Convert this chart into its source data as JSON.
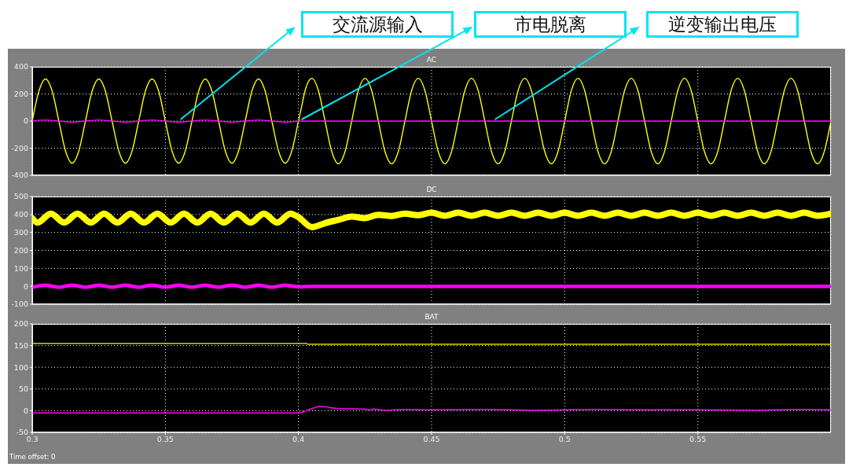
{
  "chart_data": [
    {
      "type": "line",
      "title": "AC",
      "xlim": [
        0.3,
        0.6
      ],
      "xticks": [
        0.3,
        0.35,
        0.4,
        0.45,
        0.5,
        0.55
      ],
      "ylim": [
        -400,
        400
      ],
      "yticks": [
        -400,
        -200,
        0,
        200,
        400
      ],
      "grid": true,
      "tick_labels": "y",
      "series": [
        {
          "color": "#ffff00",
          "x": [
            0.3,
            0.3025,
            0.305,
            0.3075,
            0.31,
            0.3125,
            0.315,
            0.3175,
            0.32,
            0.3225,
            0.325,
            0.3275,
            0.33,
            0.3325,
            0.335,
            0.3375,
            0.34,
            0.3425,
            0.345,
            0.3475,
            0.35,
            0.3525,
            0.355,
            0.3575,
            0.36,
            0.3625,
            0.365,
            0.3675,
            0.37,
            0.3725,
            0.375,
            0.3775,
            0.38,
            0.3825,
            0.385,
            0.3875,
            0.39,
            0.3925,
            0.395,
            0.3975,
            0.4,
            0.401,
            0.4025,
            0.405,
            0.4075,
            0.41,
            0.4125,
            0.415,
            0.4175,
            0.42,
            0.4225,
            0.425,
            0.4275,
            0.43,
            0.4325,
            0.435,
            0.4375,
            0.44,
            0.4425,
            0.445,
            0.4475,
            0.45,
            0.4525,
            0.455,
            0.4575,
            0.46,
            0.4625,
            0.465,
            0.4675,
            0.47,
            0.4725,
            0.475,
            0.4775,
            0.48,
            0.4825,
            0.485,
            0.4875,
            0.49,
            0.4925,
            0.495,
            0.4975,
            0.5,
            0.5025,
            0.505,
            0.5075,
            0.51,
            0.5125,
            0.515,
            0.5175,
            0.52,
            0.5225,
            0.525,
            0.5275,
            0.53,
            0.5325,
            0.535,
            0.5375,
            0.54,
            0.5425,
            0.545,
            0.5475,
            0.55,
            0.5525,
            0.555,
            0.5575,
            0.56,
            0.5625,
            0.565,
            0.5675,
            0.57,
            0.5725,
            0.575,
            0.5775,
            0.58,
            0.5825,
            0.585,
            0.5875,
            0.59,
            0.5925,
            0.595,
            0.5975,
            0.6
          ],
          "values": [
            0,
            220,
            310,
            220,
            0,
            -220,
            -310,
            -220,
            0,
            220,
            310,
            220,
            0,
            -220,
            -310,
            -220,
            0,
            220,
            310,
            220,
            0,
            -220,
            -310,
            -220,
            0,
            220,
            310,
            220,
            0,
            -220,
            -310,
            -220,
            0,
            220,
            310,
            220,
            0,
            -220,
            -310,
            -220,
            0,
            90,
            225,
            315,
            225,
            0,
            -225,
            -315,
            -225,
            0,
            225,
            315,
            225,
            0,
            -225,
            -315,
            -225,
            0,
            225,
            315,
            225,
            0,
            -225,
            -315,
            -225,
            0,
            225,
            315,
            225,
            0,
            -225,
            -315,
            -225,
            0,
            225,
            315,
            225,
            0,
            -225,
            -315,
            -225,
            0,
            225,
            315,
            225,
            0,
            -225,
            -315,
            -225,
            0,
            225,
            315,
            225,
            0,
            -225,
            -315,
            -225,
            0,
            225,
            315,
            225,
            0,
            -225,
            -315,
            -225,
            0,
            225,
            315,
            225,
            0,
            -225,
            -315,
            -225,
            0,
            225,
            315,
            225,
            0,
            -225,
            -315,
            -225,
            0
          ]
        },
        {
          "color": "#ff00ff",
          "x": [
            0.3,
            0.305,
            0.31,
            0.315,
            0.32,
            0.325,
            0.33,
            0.335,
            0.34,
            0.345,
            0.35,
            0.355,
            0.36,
            0.365,
            0.37,
            0.375,
            0.38,
            0.385,
            0.39,
            0.395,
            0.4,
            0.6
          ],
          "values": [
            0,
            8,
            0,
            -8,
            0,
            8,
            0,
            -8,
            0,
            8,
            0,
            -8,
            0,
            8,
            0,
            -8,
            0,
            8,
            0,
            -8,
            0,
            0
          ]
        }
      ],
      "annotations": [
        "交流源输入",
        "市电脱离",
        "逆变输出电压"
      ]
    },
    {
      "type": "line",
      "title": "DC",
      "xlim": [
        0.3,
        0.6
      ],
      "xticks": [
        0.3,
        0.35,
        0.4,
        0.45,
        0.5,
        0.55
      ],
      "ylim": [
        -100,
        500
      ],
      "yticks": [
        -100,
        0,
        100,
        200,
        300,
        400,
        500
      ],
      "grid": true,
      "tick_labels": "y",
      "series": [
        {
          "color": "#ffff00",
          "x": [
            0.3,
            0.302,
            0.307,
            0.312,
            0.317,
            0.322,
            0.327,
            0.332,
            0.337,
            0.342,
            0.347,
            0.352,
            0.357,
            0.362,
            0.367,
            0.372,
            0.377,
            0.382,
            0.387,
            0.392,
            0.397,
            0.4,
            0.405,
            0.41,
            0.415,
            0.42,
            0.425,
            0.43,
            0.435,
            0.44,
            0.445,
            0.45,
            0.455,
            0.46,
            0.465,
            0.47,
            0.475,
            0.48,
            0.485,
            0.49,
            0.495,
            0.5,
            0.505,
            0.51,
            0.515,
            0.52,
            0.525,
            0.53,
            0.535,
            0.54,
            0.545,
            0.55,
            0.555,
            0.56,
            0.565,
            0.57,
            0.575,
            0.58,
            0.585,
            0.59,
            0.595,
            0.6
          ],
          "values": [
            380,
            355,
            405,
            355,
            405,
            355,
            405,
            355,
            405,
            355,
            405,
            355,
            405,
            355,
            405,
            355,
            405,
            355,
            405,
            355,
            405,
            385,
            330,
            352,
            370,
            388,
            380,
            398,
            392,
            405,
            396,
            410,
            393,
            410,
            393,
            410,
            393,
            410,
            393,
            410,
            393,
            410,
            393,
            410,
            393,
            410,
            393,
            410,
            393,
            410,
            393,
            410,
            393,
            410,
            393,
            410,
            393,
            410,
            393,
            410,
            393,
            405
          ]
        },
        {
          "color": "#ff00ff",
          "x": [
            0.3,
            0.305,
            0.31,
            0.315,
            0.32,
            0.325,
            0.33,
            0.335,
            0.34,
            0.345,
            0.35,
            0.355,
            0.36,
            0.365,
            0.37,
            0.375,
            0.38,
            0.385,
            0.39,
            0.395,
            0.4,
            0.405,
            0.6
          ],
          "values": [
            -5,
            6,
            -5,
            6,
            -5,
            6,
            -5,
            6,
            -5,
            6,
            -5,
            6,
            -5,
            6,
            -5,
            6,
            -5,
            6,
            -5,
            6,
            -3,
            0,
            0
          ]
        }
      ]
    },
    {
      "type": "line",
      "title": "BAT",
      "xlim": [
        0.3,
        0.6
      ],
      "xticks": [
        0.3,
        0.35,
        0.4,
        0.45,
        0.5,
        0.55
      ],
      "ylim": [
        -50,
        200
      ],
      "yticks": [
        -50,
        0,
        50,
        100,
        150,
        200
      ],
      "grid": true,
      "series": [
        {
          "color": "#ffff00",
          "x": [
            0.3,
            0.403,
            0.4035,
            0.6
          ],
          "values": [
            155,
            155,
            153,
            153
          ]
        },
        {
          "color": "#ff00ff",
          "x": [
            0.3,
            0.4,
            0.403,
            0.408,
            0.4115,
            0.413,
            0.4152,
            0.425,
            0.4265,
            0.428,
            0.432,
            0.441,
            0.45,
            0.47,
            0.49,
            0.51,
            0.53,
            0.55,
            0.57,
            0.59,
            0.6
          ],
          "values": [
            -5,
            -5,
            0,
            10,
            8,
            6,
            5,
            4,
            2,
            4,
            1,
            3,
            2,
            3,
            1,
            3,
            2,
            2,
            1,
            3,
            2
          ]
        }
      ],
      "annotations": [
        "Time offset: 0"
      ]
    }
  ]
}
